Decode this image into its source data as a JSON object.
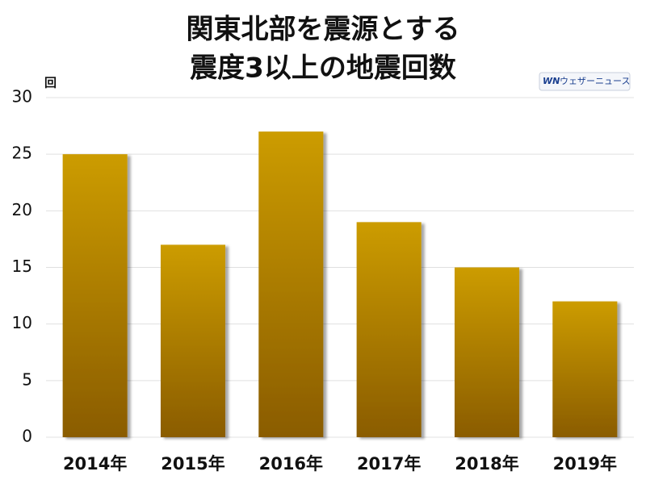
{
  "chart_data": {
    "type": "bar",
    "title": [
      "関東北部を震源とする",
      "震度3以上の地震回数"
    ],
    "y_unit": "回",
    "logo_mark": "WN",
    "logo_text": "ウェザーニュース",
    "categories": [
      "2014年",
      "2015年",
      "2016年",
      "2017年",
      "2018年",
      "2019年"
    ],
    "values": [
      25,
      17,
      27,
      19,
      15,
      12
    ],
    "color": "#cc9c00",
    "ylim": [
      0,
      30
    ],
    "yticks": [
      0,
      5,
      10,
      15,
      20,
      25,
      30
    ],
    "grid": true
  }
}
